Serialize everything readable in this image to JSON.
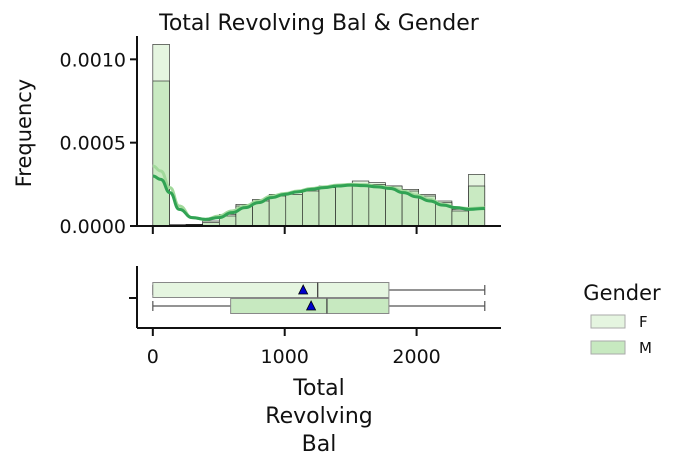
{
  "chart_data": {
    "type": "histogram-with-boxplot",
    "title": "Total Revolving Bal & Gender",
    "ylabel": "Frequency",
    "xlabel_lines": [
      "Total",
      "Revolving",
      "Bal"
    ],
    "xlim": [
      -120,
      2640
    ],
    "ylim": [
      0,
      0.00114
    ],
    "xticks": [
      0,
      1000,
      2000
    ],
    "xtick_labels": [
      "0",
      "1000",
      "2000"
    ],
    "yticks": [
      0,
      0.0005,
      0.001
    ],
    "ytick_labels": [
      "0.0000",
      "0.0005",
      "0.0010"
    ],
    "bin_edges": [
      0,
      126,
      252,
      378,
      504,
      630,
      756,
      882,
      1008,
      1134,
      1260,
      1386,
      1512,
      1638,
      1764,
      1890,
      2016,
      2142,
      2268,
      2394,
      2517
    ],
    "series": [
      {
        "name": "F",
        "color": "#e5f5e0",
        "edge_color": "#1a1a1a",
        "values": [
          0.00109,
          8e-06,
          1e-05,
          3e-05,
          7e-05,
          0.00013,
          0.00016,
          0.00019,
          0.0002,
          0.00022,
          0.00024,
          0.00025,
          0.00027,
          0.00026,
          0.00024,
          0.00022,
          0.00019,
          0.00015,
          0.0001,
          0.00031
        ],
        "kde_color": "#a1d99b",
        "kde_x": [
          0,
          60,
          130,
          200,
          300,
          400,
          500,
          600,
          700,
          800,
          900,
          1000,
          1100,
          1200,
          1300,
          1400,
          1500,
          1600,
          1700,
          1800,
          1900,
          2000,
          2100,
          2200,
          2300,
          2400,
          2517
        ],
        "kde_y": [
          0.00036,
          0.00033,
          0.00023,
          0.00012,
          5e-05,
          4e-05,
          6e-05,
          9e-05,
          0.00012,
          0.00015,
          0.00018,
          0.000195,
          0.00021,
          0.000225,
          0.000235,
          0.000245,
          0.00025,
          0.000248,
          0.00024,
          0.00023,
          0.00021,
          0.000185,
          0.00016,
          0.00013,
          0.00011,
          0.000105,
          0.00011
        ]
      },
      {
        "name": "M",
        "color": "#c7e9c0",
        "edge_color": "#1a1a1a",
        "values": [
          0.00087,
          5e-06,
          8e-06,
          2e-05,
          6e-05,
          0.00012,
          0.00015,
          0.00018,
          0.00019,
          0.00021,
          0.00023,
          0.00024,
          0.00025,
          0.00025,
          0.00024,
          0.00021,
          0.00018,
          0.00014,
          9e-05,
          0.00024
        ],
        "kde_color": "#31a354",
        "kde_x": [
          0,
          60,
          130,
          200,
          300,
          400,
          500,
          600,
          700,
          800,
          900,
          1000,
          1100,
          1200,
          1300,
          1400,
          1500,
          1600,
          1700,
          1800,
          1900,
          2000,
          2100,
          2200,
          2300,
          2400,
          2517
        ],
        "kde_y": [
          0.0003,
          0.00028,
          0.0002,
          0.0001,
          5e-05,
          4e-05,
          5e-05,
          8e-05,
          0.00011,
          0.00014,
          0.00017,
          0.00019,
          0.000205,
          0.00022,
          0.00023,
          0.00024,
          0.000245,
          0.000242,
          0.000235,
          0.000225,
          0.0002,
          0.000175,
          0.00015,
          0.000125,
          0.00011,
          0.0001,
          0.000105
        ]
      }
    ],
    "boxplot": [
      {
        "name": "F",
        "color": "#e5f5e0",
        "min": 0,
        "q1": 0,
        "median": 1250,
        "q3": 1790,
        "max": 2517,
        "mean": 1140
      },
      {
        "name": "M",
        "color": "#c7e9c0",
        "min": 0,
        "q1": 590,
        "median": 1320,
        "q3": 1790,
        "max": 2517,
        "mean": 1200
      }
    ],
    "legend": {
      "title": "Gender",
      "placement": "right",
      "entries": [
        "F",
        "M"
      ]
    }
  }
}
